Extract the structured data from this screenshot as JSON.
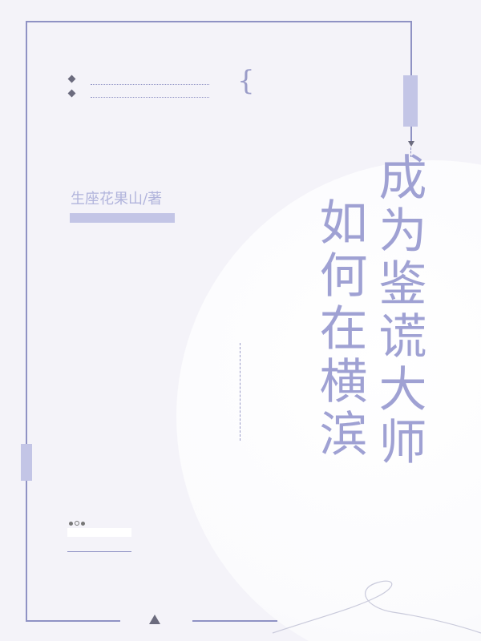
{
  "book": {
    "title_line1": "成为鉴谎大师",
    "title_line2": "如何在横滨",
    "author": "生座花果山/著"
  },
  "colors": {
    "background": "#f4f3f9",
    "accent": "#8f92c4",
    "title": "#9fa1d3",
    "tab": "#c3c5e6"
  }
}
